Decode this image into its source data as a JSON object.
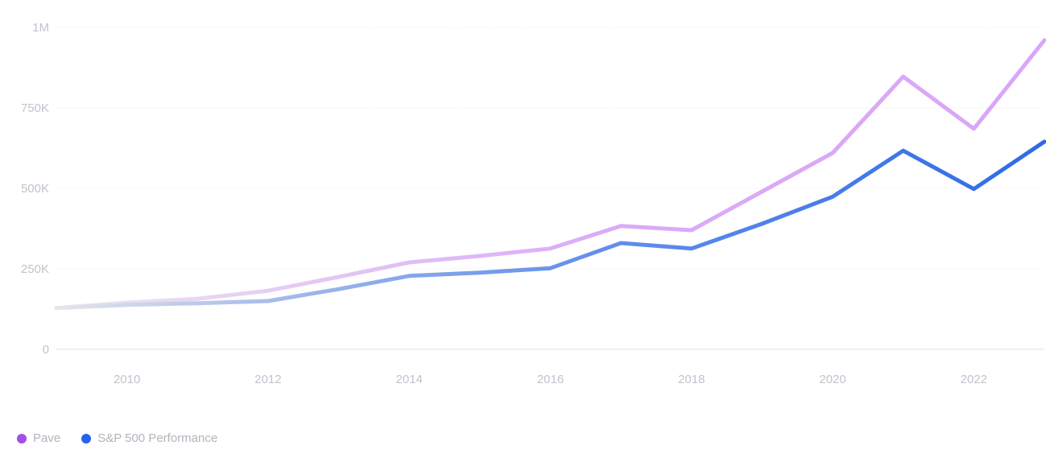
{
  "chart_data": {
    "type": "line",
    "title": "",
    "xlabel": "",
    "ylabel": "",
    "x": [
      2009,
      2010,
      2011,
      2012,
      2013,
      2014,
      2015,
      2016,
      2017,
      2018,
      2019,
      2020,
      2021,
      2022,
      2023
    ],
    "x_ticks": [
      2010,
      2012,
      2014,
      2016,
      2018,
      2020,
      2022
    ],
    "x_tick_labels": [
      "2010",
      "2012",
      "2014",
      "2016",
      "2018",
      "2020",
      "2022"
    ],
    "xlim": [
      2009,
      2023
    ],
    "ylim": [
      0,
      1000000
    ],
    "y_ticks": [
      0,
      250000,
      500000,
      750000,
      1000000
    ],
    "y_tick_labels": [
      "0",
      "250K",
      "500K",
      "750K",
      "1M"
    ],
    "grid": true,
    "legend_position": "bottom-left",
    "series": [
      {
        "name": "Pave",
        "color": "#d9a6f8",
        "start_color": "#ece6ef",
        "legend_color": "#a34fe6",
        "values": [
          128000,
          145000,
          157000,
          182000,
          225000,
          270000,
          290000,
          313000,
          383000,
          370000,
          490000,
          610000,
          847000,
          685000,
          960000
        ]
      },
      {
        "name": "S&P 500 Performance",
        "color": "#2f6ae6",
        "start_color": "#e6e6ea",
        "legend_color": "#2563eb",
        "values": [
          128000,
          138000,
          143000,
          150000,
          187000,
          228000,
          238000,
          252000,
          330000,
          313000,
          390000,
          474000,
          617000,
          498000,
          645000
        ]
      }
    ]
  }
}
